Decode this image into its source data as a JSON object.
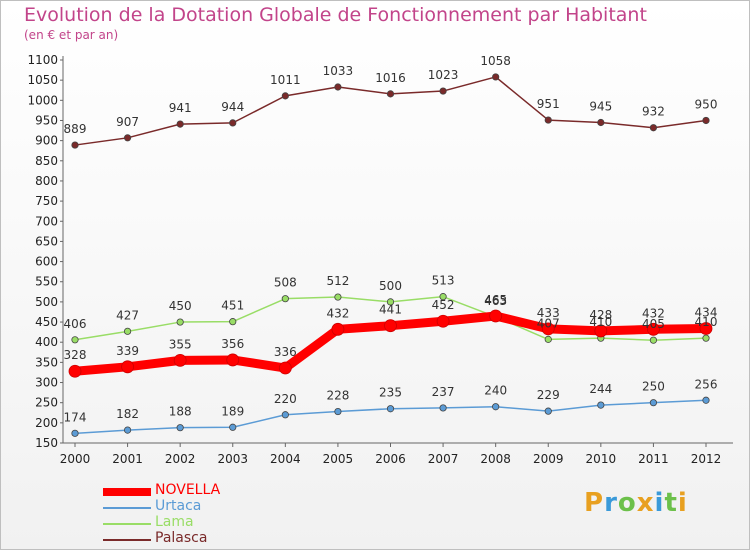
{
  "page": {
    "title": "Evolution de la Dotation Globale de Fonctionnement par Habitant",
    "subtitle": "(en € et par an)",
    "logo": "Proxiti"
  },
  "chart_data": {
    "type": "line",
    "title": "Evolution de la Dotation Globale de Fonctionnement par Habitant",
    "subtitle": "(en € et par an)",
    "xlabel": "",
    "ylabel": "",
    "x": [
      "2000",
      "2001",
      "2002",
      "2003",
      "2004",
      "2005",
      "2006",
      "2007",
      "2008",
      "2009",
      "2010",
      "2011",
      "2012"
    ],
    "yticks": [
      "150",
      "200",
      "250",
      "300",
      "350",
      "400",
      "450",
      "500",
      "550",
      "600",
      "650",
      "700",
      "750",
      "800",
      "850",
      "900",
      "950",
      "1000",
      "1050",
      "1100"
    ],
    "ylim": [
      150,
      1100
    ],
    "grid": false,
    "legend_position": "bottom-left",
    "series": [
      {
        "name": "NOVELLA",
        "color": "#ff0000",
        "values": [
          328,
          339,
          355,
          356,
          336,
          432,
          441,
          452,
          465,
          433,
          428,
          432,
          434
        ],
        "labels": [
          "328",
          "339",
          "355",
          "356",
          "336",
          "432",
          "441",
          "452",
          "465",
          "433",
          "428",
          "432",
          "434"
        ]
      },
      {
        "name": "Urtaca",
        "color": "#5b9bd5",
        "values": [
          174,
          182,
          188,
          189,
          220,
          228,
          235,
          237,
          240,
          229,
          244,
          250,
          256
        ],
        "labels": [
          "174",
          "182",
          "188",
          "189",
          "220",
          "228",
          "235",
          "237",
          "240",
          "229",
          "244",
          "250",
          "256"
        ]
      },
      {
        "name": "Lama",
        "color": "#99dd66",
        "values": [
          406,
          427,
          450,
          451,
          508,
          512,
          500,
          513,
          463,
          407,
          410,
          405,
          410
        ],
        "labels": [
          "406",
          "427",
          "450",
          "451",
          "508",
          "512",
          "500",
          "513",
          "463",
          "407",
          "410",
          "405",
          "410"
        ]
      },
      {
        "name": "Palasca",
        "color": "#7a2a2a",
        "values": [
          889,
          907,
          941,
          944,
          1011,
          1033,
          1016,
          1023,
          1058,
          951,
          945,
          932,
          950
        ],
        "labels": [
          "889",
          "907",
          "941",
          "944",
          "1011",
          "1033",
          "1016",
          "1023",
          "1058",
          "951",
          "945",
          "932",
          "950"
        ]
      }
    ]
  }
}
